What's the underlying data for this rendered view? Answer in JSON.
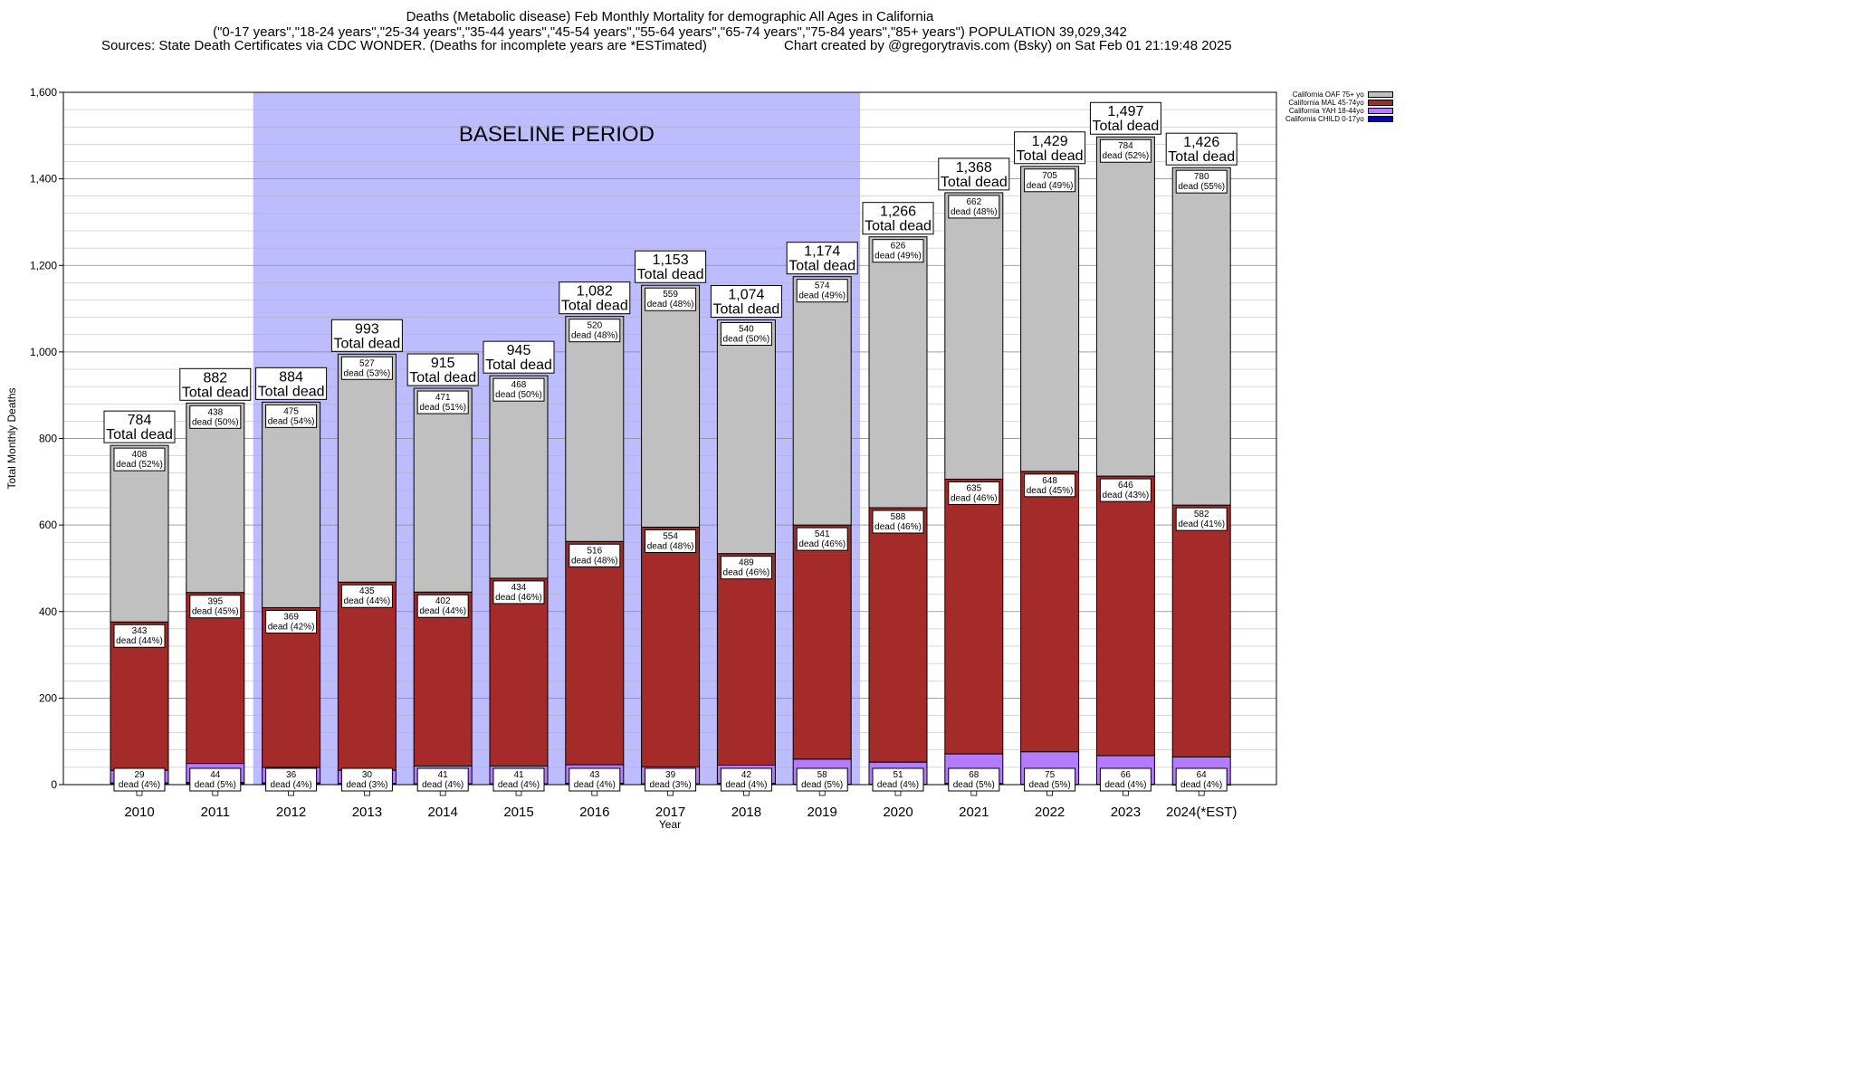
{
  "title": {
    "line1": "Deaths (Metabolic disease) Feb Monthly Mortality for demographic All Ages in California",
    "line2": "(\"0-17 years\",\"18-24 years\",\"25-34 years\",\"35-44 years\",\"45-54 years\",\"55-64 years\",\"65-74 years\",\"75-84 years\",\"85+ years\") POPULATION 39,029,342",
    "sources": "Sources: State Death Certificates via CDC WONDER. (Deaths for incomplete years are *ESTimated)",
    "credit": "Chart created by @gregorytravis.com (Bsky) on Sat Feb 01 21:19:48 2025"
  },
  "legend": [
    {
      "label": "California OAF 75+ yo",
      "color": "#c0c0c0"
    },
    {
      "label": "California MAL 45-74yo",
      "color": "#a52a2a"
    },
    {
      "label": "California YAH 18-44yo",
      "color": "#b57bff"
    },
    {
      "label": "California CHILD 0-17yo",
      "color": "#0000cc"
    }
  ],
  "chart_data": {
    "type": "bar",
    "stacked": true,
    "xlabel": "Year",
    "ylabel": "Total Monthly Deaths",
    "ylim": [
      0,
      1600
    ],
    "yticks": [
      "0",
      "200",
      "400",
      "600",
      "800",
      "1,000",
      "1,200",
      "1,400",
      "1,600"
    ],
    "grid": true,
    "legend_position": "top-right",
    "baseline_label": "BASELINE PERIOD",
    "baseline_range": [
      "2012",
      "2019"
    ],
    "total_label": "Total dead",
    "dead_word": "dead",
    "categories": [
      "2010",
      "2011",
      "2012",
      "2013",
      "2014",
      "2015",
      "2016",
      "2017",
      "2018",
      "2019",
      "2020",
      "2021",
      "2022",
      "2023",
      "2024(*EST)"
    ],
    "totals": [
      "784",
      "882",
      "884",
      "993",
      "915",
      "945",
      "1,082",
      "1,153",
      "1,074",
      "1,174",
      "1,266",
      "1,368",
      "1,429",
      "1,497",
      "1,426"
    ],
    "series": [
      {
        "name": "California CHILD 0-17yo",
        "color": "#0000cc",
        "values": [
          4,
          5,
          4,
          3,
          2,
          2,
          3,
          2,
          3,
          1,
          1,
          3,
          1,
          1,
          0
        ]
      },
      {
        "name": "California YAH 18-44yo",
        "color": "#b57bff",
        "values": [
          29,
          44,
          36,
          30,
          41,
          41,
          43,
          39,
          42,
          58,
          51,
          68,
          75,
          66,
          64
        ],
        "pct": [
          "4%",
          "5%",
          "4%",
          "3%",
          "4%",
          "4%",
          "4%",
          "3%",
          "4%",
          "5%",
          "4%",
          "5%",
          "5%",
          "4%",
          "4%"
        ]
      },
      {
        "name": "California MAL 45-74yo",
        "color": "#a52a2a",
        "values": [
          343,
          395,
          369,
          435,
          402,
          434,
          516,
          554,
          489,
          541,
          588,
          635,
          648,
          646,
          582
        ],
        "pct": [
          "44%",
          "45%",
          "42%",
          "44%",
          "44%",
          "46%",
          "48%",
          "48%",
          "46%",
          "46%",
          "46%",
          "46%",
          "45%",
          "43%",
          "41%"
        ]
      },
      {
        "name": "California OAF 75+ yo",
        "color": "#c0c0c0",
        "values": [
          408,
          438,
          475,
          527,
          471,
          468,
          520,
          559,
          540,
          574,
          626,
          662,
          705,
          784,
          780
        ],
        "pct": [
          "52%",
          "50%",
          "54%",
          "53%",
          "51%",
          "50%",
          "48%",
          "48%",
          "50%",
          "49%",
          "49%",
          "48%",
          "49%",
          "52%",
          "55%"
        ]
      }
    ]
  }
}
